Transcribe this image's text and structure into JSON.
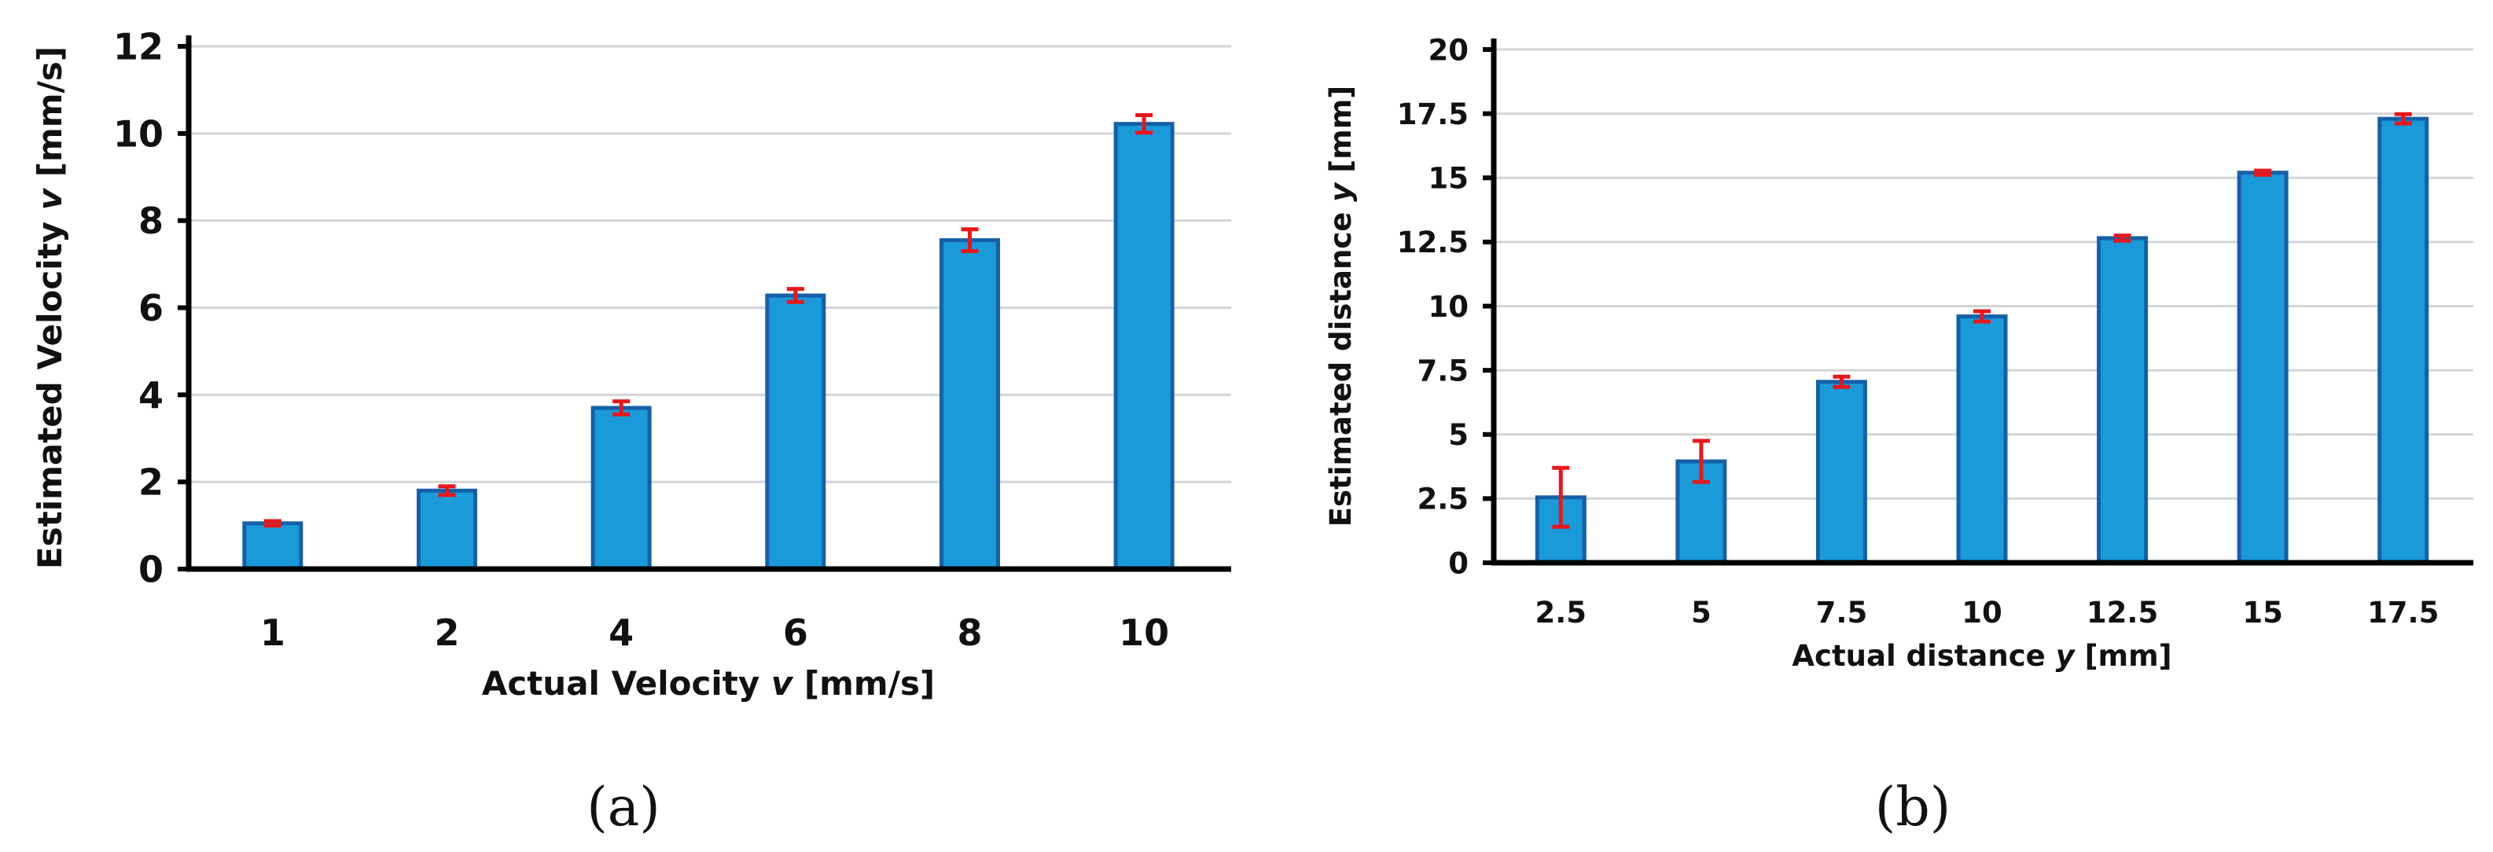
{
  "chart_data": [
    {
      "type": "bar",
      "panel_label": "(a)",
      "categories": [
        "1",
        "2",
        "4",
        "6",
        "8",
        "10"
      ],
      "values": [
        1.05,
        1.8,
        3.7,
        6.28,
        7.55,
        10.22
      ],
      "errors": [
        0.05,
        0.1,
        0.15,
        0.15,
        0.25,
        0.2
      ],
      "xlabel_prefix": "Actual Velocity ",
      "xlabel_var": "v",
      "xlabel_suffix": " [mm/s]",
      "ylabel_prefix": "Estimated Velocity ",
      "ylabel_var": "v",
      "ylabel_suffix": " [mm/s]",
      "ylim": [
        0,
        12
      ],
      "yticks": [
        0,
        2,
        4,
        6,
        8,
        10,
        12
      ],
      "grid": true,
      "legend": "none"
    },
    {
      "type": "bar",
      "panel_label": "(b)",
      "categories": [
        "2.5",
        "5",
        "7.5",
        "10",
        "12.5",
        "15",
        "17.5"
      ],
      "values": [
        2.55,
        3.95,
        7.05,
        9.6,
        12.65,
        15.2,
        17.3
      ],
      "errors": [
        1.15,
        0.8,
        0.2,
        0.2,
        0.1,
        0.08,
        0.18
      ],
      "xlabel_prefix": "Actual distance ",
      "xlabel_var": "y",
      "xlabel_suffix": " [mm]",
      "ylabel_prefix": "Estimated distance ",
      "ylabel_var": "y",
      "ylabel_suffix": " [mm]",
      "ylim": [
        0,
        20
      ],
      "yticks": [
        "0",
        "2.5",
        "5",
        "7.5",
        "10",
        "12.5",
        "15",
        "17.5",
        "20"
      ],
      "grid": true,
      "legend": "none"
    }
  ],
  "colors": {
    "bar_fill": "#1a9ad9",
    "bar_edge": "#1560a8",
    "error_bar": "#e8171b",
    "grid": "#d4d4d4",
    "axis": "#000000"
  }
}
